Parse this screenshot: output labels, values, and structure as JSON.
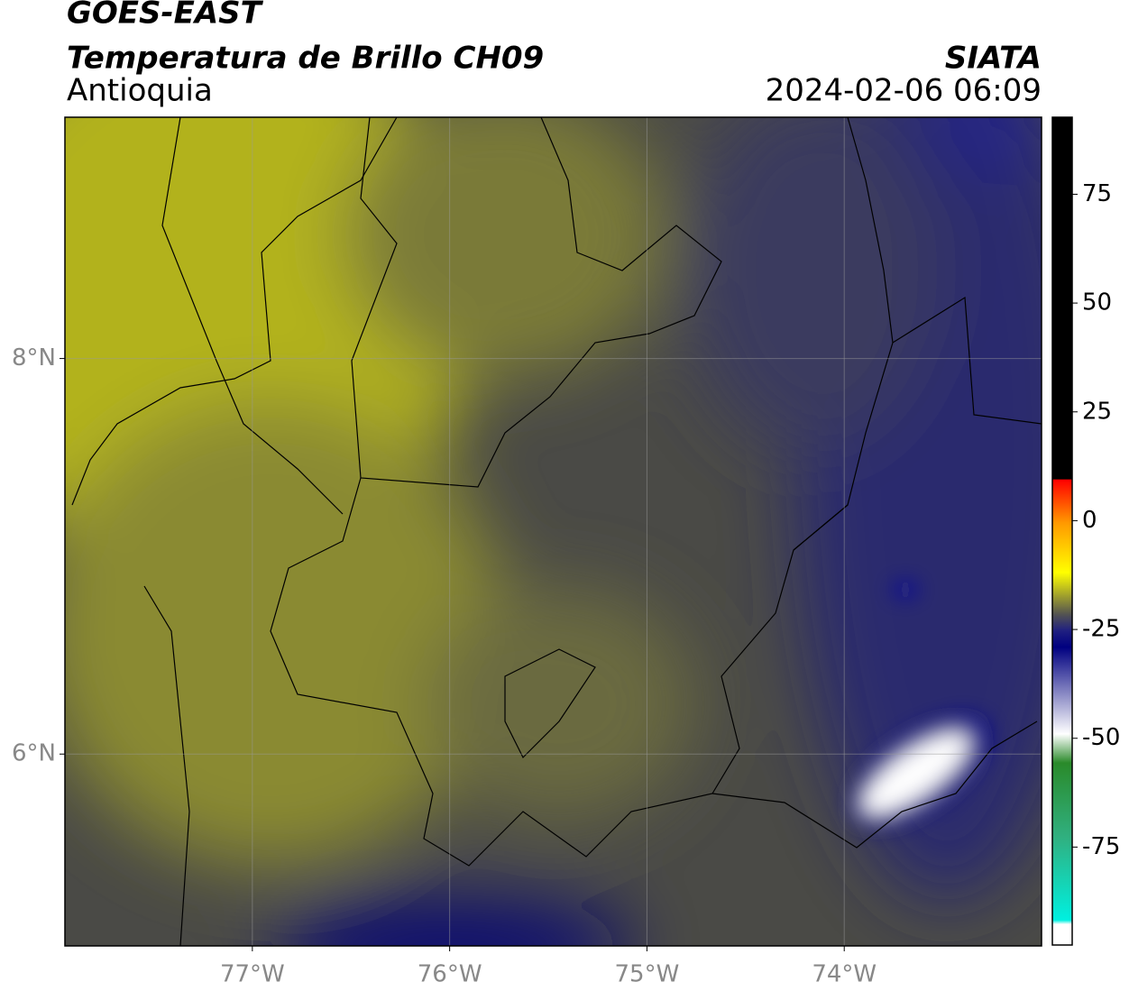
{
  "header": {
    "satellite": "GOES-EAST",
    "product": "Temperatura de Brillo CH09",
    "region": "Antioquia",
    "source": "SIATA",
    "datetime": "2024-02-06 06:09"
  },
  "map": {
    "lonlim": [
      -77.95,
      -73.0
    ],
    "latlim": [
      5.03,
      9.22
    ],
    "lon_ticks": [
      {
        "value": -77,
        "label": "77°W"
      },
      {
        "value": -76,
        "label": "76°W"
      },
      {
        "value": -75,
        "label": "75°W"
      },
      {
        "value": -74,
        "label": "74°W"
      }
    ],
    "lat_ticks": [
      {
        "value": 8,
        "label": "8°N"
      },
      {
        "value": 6,
        "label": "6°N"
      }
    ]
  },
  "colorbar": {
    "lim": [
      -97.5,
      92.7
    ],
    "ticks": [
      75,
      50,
      25,
      0,
      -25,
      -50,
      -75
    ]
  }
}
